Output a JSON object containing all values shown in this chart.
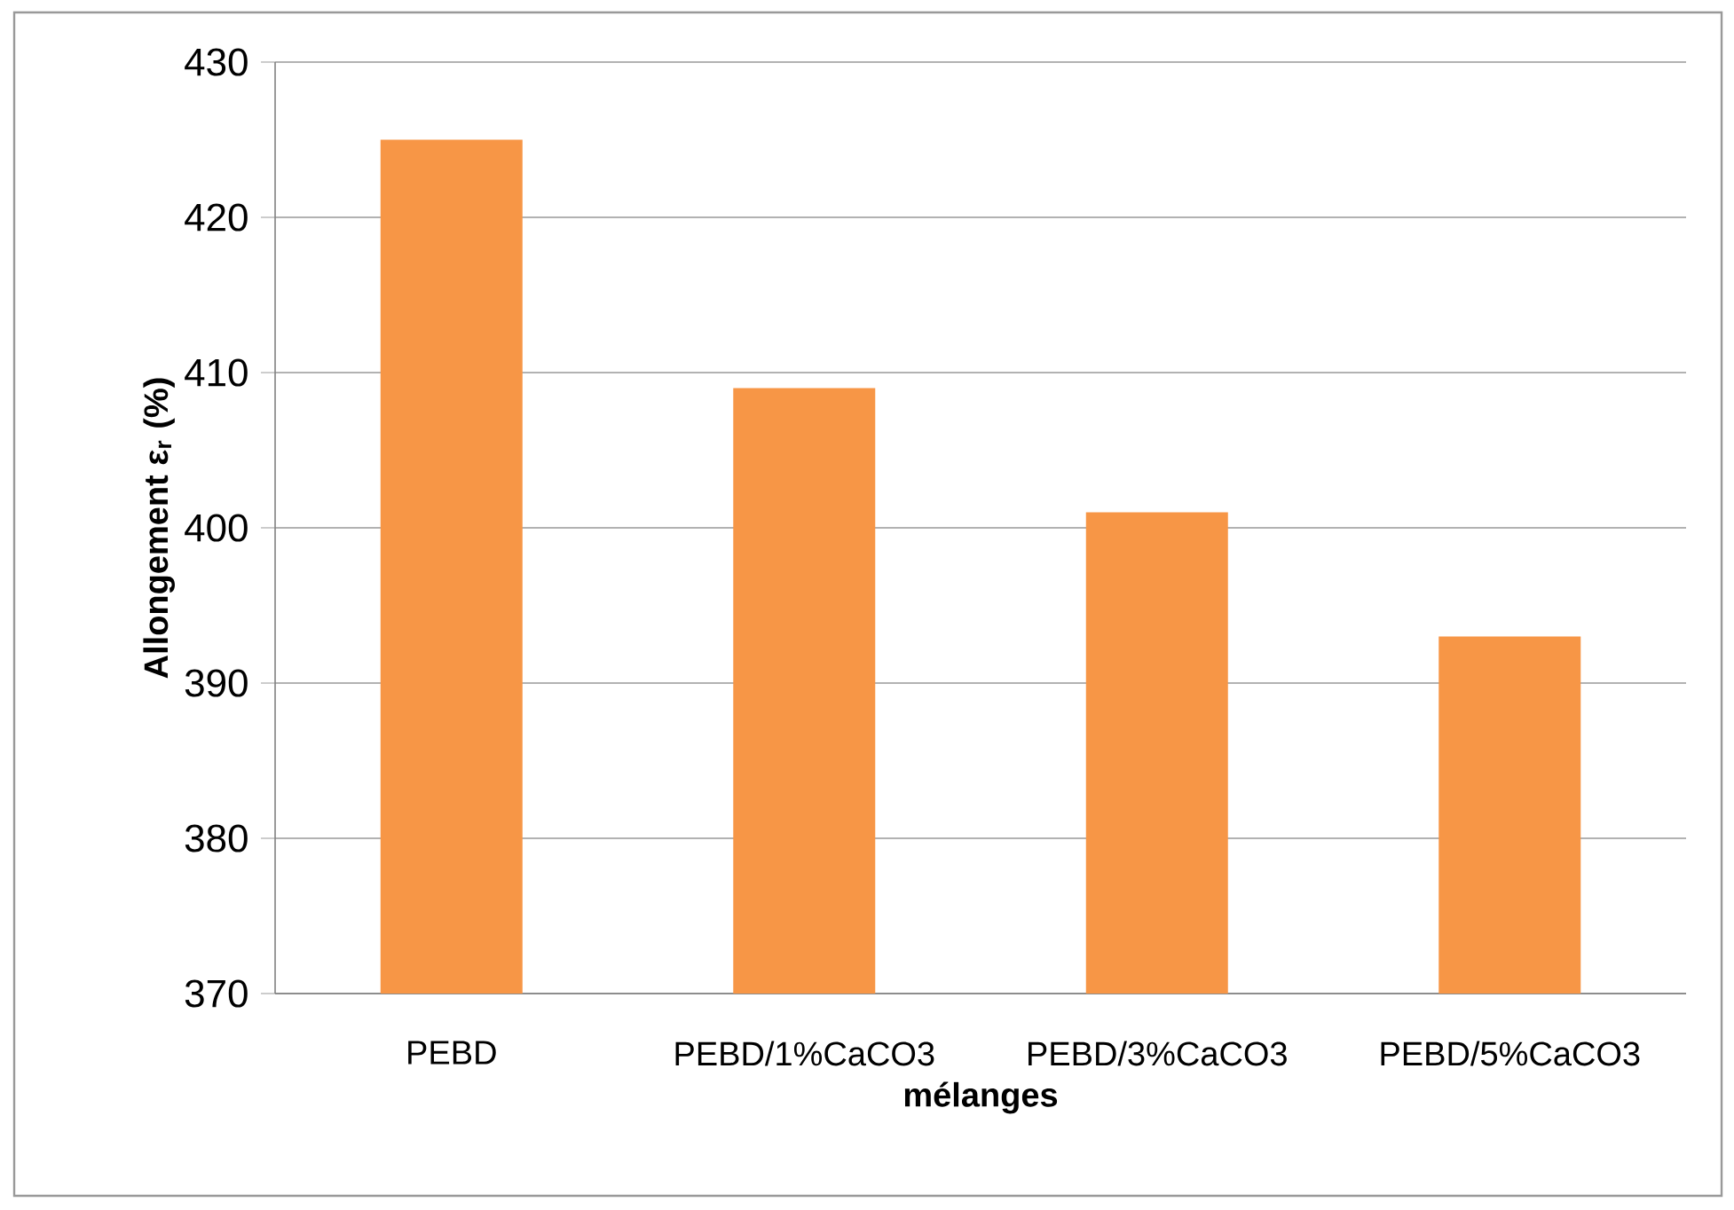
{
  "chart_data": {
    "type": "bar",
    "categories": [
      "PEBD",
      "PEBD/1%CaCO3",
      "PEBD/3%CaCO3",
      "PEBD/5%CaCO3"
    ],
    "values": [
      425,
      409,
      401,
      393
    ],
    "color": "#f79646",
    "xlabel": "mélanges",
    "ylabel": "Allongement ε$_{r}$ (%)",
    "ylim": [
      370,
      430
    ],
    "yticks": [
      370,
      380,
      390,
      400,
      410,
      420,
      430
    ],
    "grid": "y"
  }
}
